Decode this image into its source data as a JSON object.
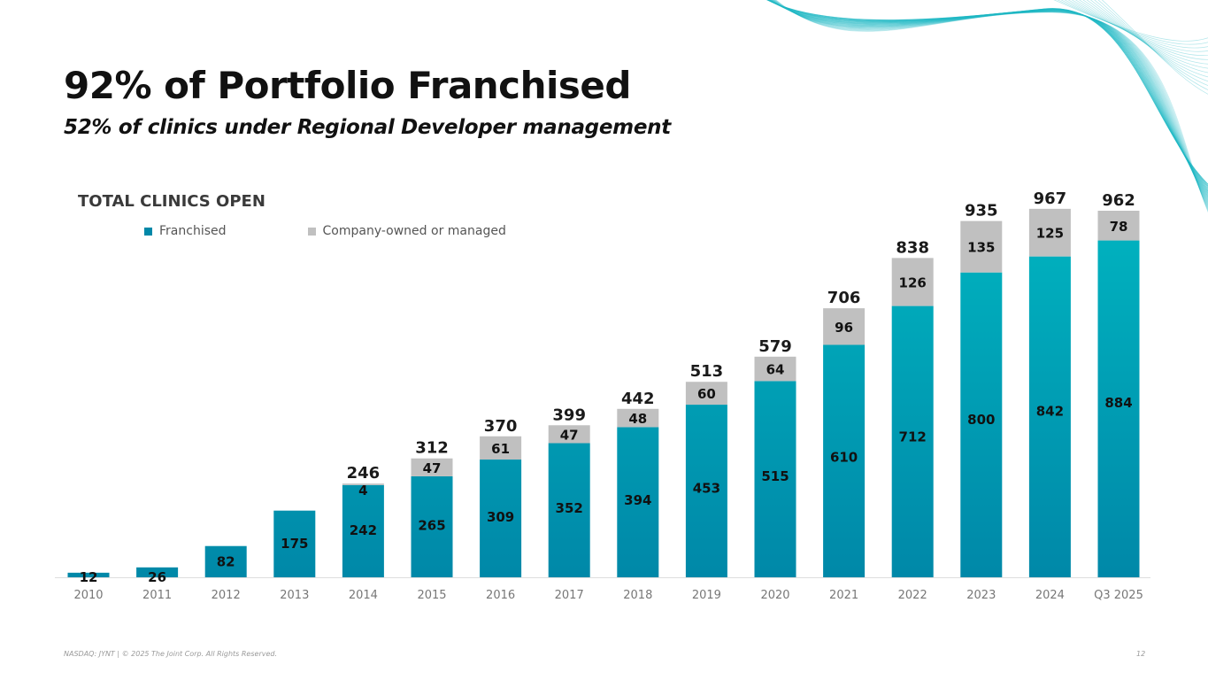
{
  "header": {
    "title": "92% of Portfolio Franchised",
    "subtitle": "52% of clinics under Regional Developer management"
  },
  "colors": {
    "franchised_top": "#00b4c0",
    "franchised_bottom": "#0088a8",
    "company": "#c0c0c0",
    "wave": "#1fb8c4",
    "text": "#111111"
  },
  "chart_data": {
    "type": "bar",
    "stacked": true,
    "title": "TOTAL CLINICS OPEN",
    "xlabel": "",
    "ylabel": "",
    "ylim": [
      0,
      1000
    ],
    "grid": false,
    "legend_position": "top-left",
    "categories": [
      "2010",
      "2011",
      "2012",
      "2013",
      "2014",
      "2015",
      "2016",
      "2017",
      "2018",
      "2019",
      "2020",
      "2021",
      "2022",
      "2023",
      "2024",
      "Q3 2025"
    ],
    "series": [
      {
        "name": "Franchised",
        "values": [
          12,
          26,
          82,
          175,
          242,
          265,
          309,
          352,
          394,
          453,
          515,
          610,
          712,
          800,
          842,
          884
        ]
      },
      {
        "name": "Company-owned or managed",
        "values": [
          0,
          0,
          0,
          0,
          4,
          47,
          61,
          47,
          48,
          60,
          64,
          96,
          126,
          135,
          125,
          78
        ]
      }
    ],
    "totals": [
      null,
      null,
      null,
      null,
      246,
      312,
      370,
      399,
      442,
      513,
      579,
      706,
      838,
      935,
      967,
      962
    ]
  },
  "footer": {
    "left": "NASDAQ: JYNT   |  © 2025 The Joint Corp. All Rights Reserved.",
    "page_number": "12"
  }
}
